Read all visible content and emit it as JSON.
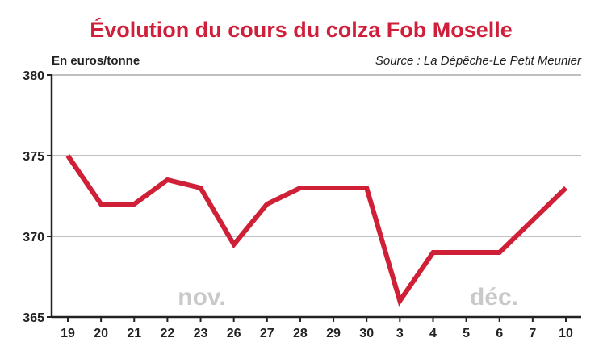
{
  "colors": {
    "title": "#d01f3a",
    "line": "#cf2037",
    "grid": "#9a9a9a",
    "axis": "#222222",
    "month_label": "#c9c9c9"
  },
  "chart_data": {
    "type": "line",
    "title": "Évolution du cours du colza Fob Moselle",
    "ylabel": "En euros/tonne",
    "source": "Source : La Dépêche-Le Petit Meunier",
    "categories": [
      "19",
      "20",
      "21",
      "22",
      "23",
      "26",
      "27",
      "28",
      "29",
      "30",
      "3",
      "4",
      "5",
      "6",
      "7",
      "10"
    ],
    "month_labels": [
      {
        "text": "nov.",
        "from": "19",
        "to": "30"
      },
      {
        "text": "déc.",
        "from": "3",
        "to": "10"
      }
    ],
    "series": [
      {
        "values": [
          375,
          372,
          372,
          373.5,
          373,
          369.5,
          372,
          373,
          373,
          373,
          366,
          369,
          369,
          369,
          371,
          373
        ]
      }
    ],
    "yticks": [
      365,
      370,
      375,
      380
    ],
    "ylim": [
      365,
      380
    ],
    "grid": true
  }
}
